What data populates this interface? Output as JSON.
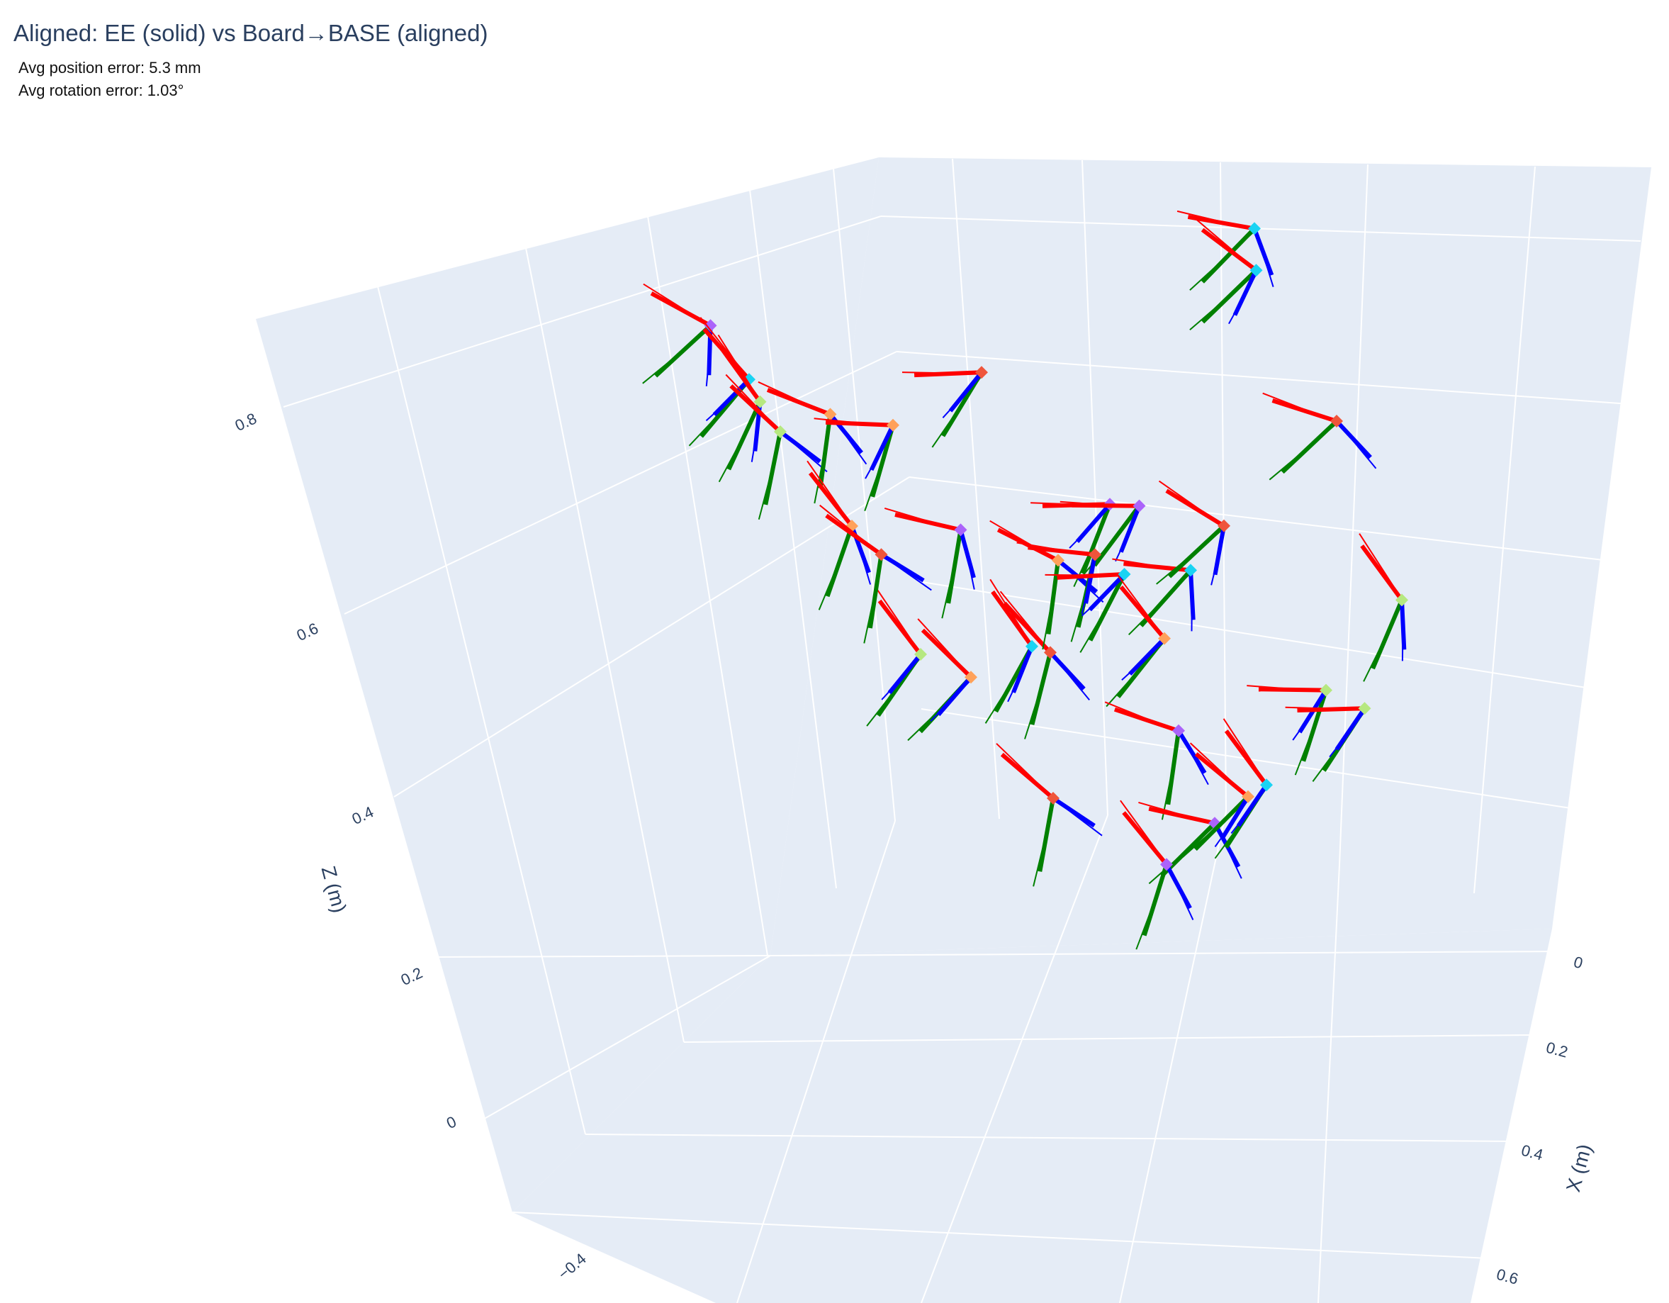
{
  "chart_data": {
    "type": "scatter3d",
    "title": "Aligned: EE (solid) vs Board→BASE (aligned)",
    "annotations": [
      "Avg position error: 5.3 mm",
      "Avg rotation error: 1.03°"
    ],
    "axes": {
      "x": {
        "label": "X (m)",
        "ticks": [
          "0",
          "0.2",
          "0.4",
          "0.6"
        ],
        "range": [
          -0.1,
          0.7
        ]
      },
      "y": {
        "label": "",
        "ticks": [
          "−0.4"
        ],
        "range": [
          -0.5,
          0.5
        ]
      },
      "z": {
        "label": "Z (m)",
        "ticks": [
          "0",
          "0.2",
          "0.4",
          "0.6",
          "0.8"
        ],
        "range": [
          -0.1,
          0.9
        ]
      }
    },
    "grid": true,
    "legend": "none",
    "frame_axis_colors": {
      "x": "#ff0000",
      "y": "#008000",
      "z": "#0000ff"
    },
    "marker_colors": [
      "#ab63fa",
      "#19d3f3",
      "#b6e880",
      "#ffa15a",
      "#ef553b"
    ],
    "frames": [
      {
        "x": 0.05,
        "y": -0.25,
        "z": 0.78,
        "color": "#ab63fa",
        "rot": 0.1
      },
      {
        "x": 0.06,
        "y": -0.22,
        "z": 0.72,
        "color": "#19d3f3",
        "rot": 0.9
      },
      {
        "x": 0.07,
        "y": -0.22,
        "z": 0.7,
        "color": "#b6e880",
        "rot": 1.7
      },
      {
        "x": 0.08,
        "y": -0.21,
        "z": 0.67,
        "color": "#b6e880",
        "rot": 2.5
      },
      {
        "x": 0.05,
        "y": -0.12,
        "z": 0.66,
        "color": "#ffa15a",
        "rot": 3.3
      },
      {
        "x": 0.04,
        "y": -0.04,
        "z": 0.63,
        "color": "#ffa15a",
        "rot": 4.1
      },
      {
        "x": 0.02,
        "y": 0.08,
        "z": 0.66,
        "color": "#ef553b",
        "rot": 4.9
      },
      {
        "x": 0.0,
        "y": 0.4,
        "z": 0.76,
        "color": "#19d3f3",
        "rot": 5.7
      },
      {
        "x": 0.01,
        "y": 0.39,
        "z": 0.72,
        "color": "#19d3f3",
        "rot": 0.4
      },
      {
        "x": 0.3,
        "y": -0.32,
        "z": 0.55,
        "color": "#b6e880",
        "rot": 1.2
      },
      {
        "x": 0.12,
        "y": -0.18,
        "z": 0.58,
        "color": "#ffa15a",
        "rot": 2.0
      },
      {
        "x": 0.13,
        "y": -0.16,
        "z": 0.55,
        "color": "#ef553b",
        "rot": 2.8
      },
      {
        "x": 0.11,
        "y": -0.05,
        "z": 0.55,
        "color": "#ab63fa",
        "rot": 3.6
      },
      {
        "x": 0.12,
        "y": 0.1,
        "z": 0.56,
        "color": "#ab63fa",
        "rot": 4.4
      },
      {
        "x": 0.13,
        "y": 0.12,
        "z": 0.56,
        "color": "#ab63fa",
        "rot": 5.2
      },
      {
        "x": 0.1,
        "y": 0.37,
        "z": 0.6,
        "color": "#ef553b",
        "rot": 6.0
      },
      {
        "x": 0.22,
        "y": -0.17,
        "z": 0.46,
        "color": "#ffa15a",
        "rot": 0.7
      },
      {
        "x": 0.2,
        "y": -0.08,
        "z": 0.47,
        "color": "#19d3f3",
        "rot": 1.5
      },
      {
        "x": 0.2,
        "y": -0.06,
        "z": 0.46,
        "color": "#ef553b",
        "rot": 2.3
      },
      {
        "x": 0.14,
        "y": 0.02,
        "z": 0.52,
        "color": "#ffa15a",
        "rot": 3.1
      },
      {
        "x": 0.14,
        "y": 0.06,
        "z": 0.52,
        "color": "#ef553b",
        "rot": 3.9
      },
      {
        "x": 0.15,
        "y": 0.08,
        "z": 0.5,
        "color": "#19d3f3",
        "rot": 4.7
      },
      {
        "x": 0.16,
        "y": 0.14,
        "z": 0.5,
        "color": "#19d3f3",
        "rot": 5.5
      },
      {
        "x": 0.14,
        "y": 0.2,
        "z": 0.53,
        "color": "#ef553b",
        "rot": 0.2
      },
      {
        "x": 0.22,
        "y": 0.04,
        "z": 0.47,
        "color": "#ffa15a",
        "rot": 1.0
      },
      {
        "x": 0.26,
        "y": 0.25,
        "z": 0.5,
        "color": "#b6e880",
        "rot": 1.8
      },
      {
        "x": 0.32,
        "y": -0.2,
        "z": 0.38,
        "color": "#ef553b",
        "rot": 2.6
      },
      {
        "x": 0.3,
        "y": -0.04,
        "z": 0.42,
        "color": "#ab63fa",
        "rot": 3.4
      },
      {
        "x": 0.3,
        "y": 0.12,
        "z": 0.44,
        "color": "#b6e880",
        "rot": 4.2
      },
      {
        "x": 0.31,
        "y": 0.15,
        "z": 0.42,
        "color": "#b6e880",
        "rot": 5.0
      },
      {
        "x": 0.4,
        "y": -0.12,
        "z": 0.38,
        "color": "#ab63fa",
        "rot": 5.8
      },
      {
        "x": 0.38,
        "y": -0.06,
        "z": 0.39,
        "color": "#ffa15a",
        "rot": 0.5
      },
      {
        "x": 0.38,
        "y": -0.04,
        "z": 0.4,
        "color": "#19d3f3",
        "rot": 1.3
      },
      {
        "x": 0.44,
        "y": -0.22,
        "z": 0.37,
        "color": "#ab63fa",
        "rot": 2.1
      }
    ]
  }
}
